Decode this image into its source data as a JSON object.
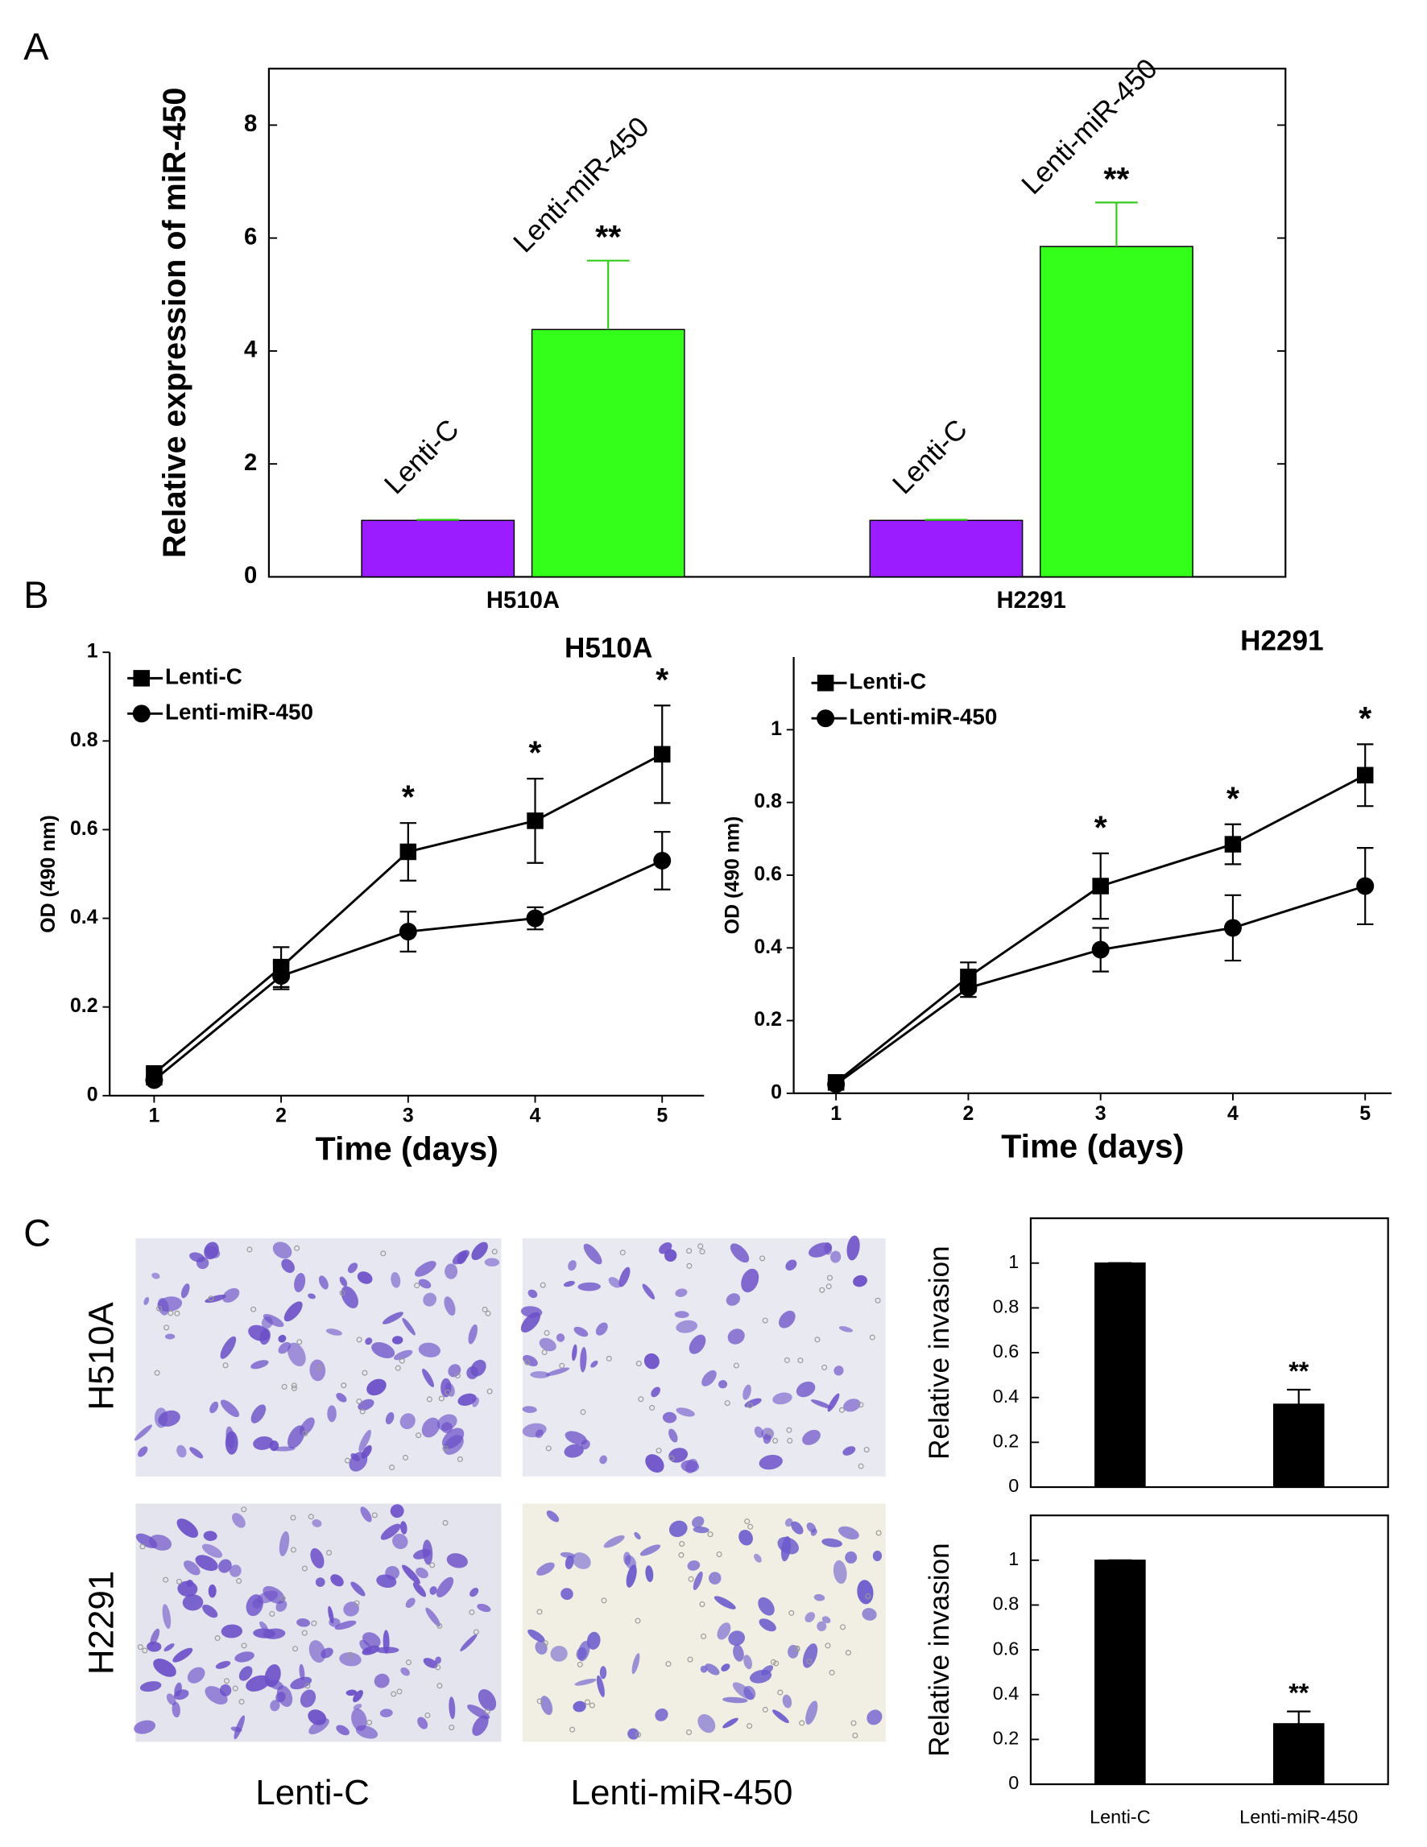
{
  "panel_labels": [
    "A",
    "B",
    "C"
  ],
  "micrographs": {
    "rows": [
      "H510A",
      "H2291"
    ],
    "columns": [
      "Lenti-C",
      "Lenti-miR-450"
    ]
  },
  "chart_data": [
    {
      "type": "bar",
      "y_label": "Relative expression of miR-450",
      "categories": [
        "H510A",
        "H2291"
      ],
      "series": [
        {
          "name": "Lenti-C",
          "color": "#9b1cff",
          "values": [
            1,
            1
          ],
          "errors": [
            0.01,
            0.01
          ]
        },
        {
          "name": "Lenti-miR-450",
          "color": "#33ff1a",
          "values": [
            4.38,
            5.85
          ],
          "errors": [
            1.22,
            0.78
          ],
          "annotations": [
            "**",
            "**"
          ]
        }
      ],
      "ylim": [
        0,
        9
      ],
      "yticks": [
        0,
        2,
        4,
        6,
        8
      ],
      "box": true
    },
    {
      "type": "line",
      "title": "H510A",
      "x_label": "Time (days)",
      "y_label": "OD  (490 nm)",
      "x": [
        1,
        2,
        3,
        4,
        5
      ],
      "xlim": [
        0.65,
        5.33
      ],
      "xticks": [
        1,
        2,
        3,
        4,
        5
      ],
      "ylim": [
        0,
        1
      ],
      "yticks": [
        0,
        0.2,
        0.4,
        0.6,
        0.8,
        1
      ],
      "legend": "top-left",
      "series": [
        {
          "name": "Lenti-C",
          "color": "#000000",
          "marker": "square",
          "values": [
            0.05,
            0.29,
            0.55,
            0.62,
            0.77
          ],
          "errors": [
            0.01,
            0.045,
            0.065,
            0.095,
            0.11
          ],
          "annotations": [
            null,
            null,
            "*",
            "*",
            "*"
          ]
        },
        {
          "name": "Lenti-miR-450",
          "color": "#000000",
          "marker": "circle",
          "values": [
            0.035,
            0.27,
            0.37,
            0.4,
            0.53
          ],
          "errors": [
            0.01,
            0.03,
            0.045,
            0.025,
            0.065
          ]
        }
      ]
    },
    {
      "type": "line",
      "title": "H2291",
      "x_label": "Time (days)",
      "y_label": "OD  (490 nm)",
      "x": [
        1,
        2,
        3,
        4,
        5
      ],
      "xlim": [
        0.68,
        5.2
      ],
      "xticks": [
        1,
        2,
        3,
        4,
        5
      ],
      "ylim": [
        0,
        1.2
      ],
      "yticks": [
        0,
        0.2,
        0.4,
        0.6,
        0.8,
        1
      ],
      "legend": "top-left",
      "series": [
        {
          "name": "Lenti-C",
          "color": "#000000",
          "marker": "square",
          "values": [
            0.03,
            0.32,
            0.57,
            0.685,
            0.875
          ],
          "errors": [
            0.01,
            0.04,
            0.09,
            0.055,
            0.085
          ],
          "annotations": [
            null,
            null,
            "*",
            "*",
            "*"
          ]
        },
        {
          "name": "Lenti-miR-450",
          "color": "#000000",
          "marker": "circle",
          "values": [
            0.025,
            0.29,
            0.395,
            0.455,
            0.57
          ],
          "errors": [
            0.01,
            0.025,
            0.06,
            0.09,
            0.105
          ]
        }
      ]
    },
    {
      "type": "bar",
      "y_label": "Relative invasion",
      "series": [
        {
          "color": "#000000",
          "values": [
            1,
            0.37
          ],
          "errors": [
            0,
            0.065
          ],
          "annotations": [
            null,
            "**"
          ]
        }
      ],
      "ylim": [
        0,
        1.2
      ],
      "yticks": [
        0,
        0.2,
        0.4,
        0.6,
        0.8,
        1
      ],
      "box": true
    },
    {
      "type": "bar",
      "y_label": "Relative invasion",
      "categories": [
        "Lenti-C",
        "Lenti-miR-450"
      ],
      "series": [
        {
          "color": "#000000",
          "values": [
            1,
            0.27
          ],
          "errors": [
            0,
            0.055
          ],
          "annotations": [
            null,
            "**"
          ]
        }
      ],
      "ylim": [
        0,
        1.2
      ],
      "yticks": [
        0,
        0.2,
        0.4,
        0.6,
        0.8,
        1
      ],
      "box": true
    }
  ]
}
